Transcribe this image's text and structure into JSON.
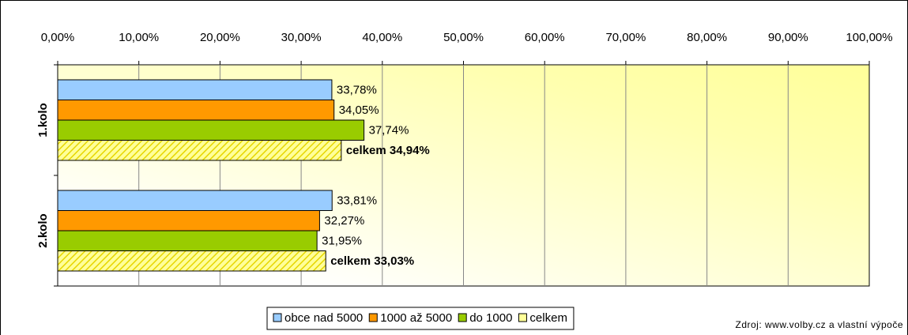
{
  "chart_data": {
    "type": "hbar",
    "categories": [
      "1.kolo",
      "2.kolo"
    ],
    "series": [
      {
        "name": "obce nad 5000",
        "color": "#99ccff",
        "values": [
          33.78,
          33.81
        ],
        "value_labels": [
          "33,78%",
          "33,81%"
        ]
      },
      {
        "name": "1000 až 5000",
        "color": "#ff9900",
        "values": [
          34.05,
          32.27
        ],
        "value_labels": [
          "34,05%",
          "32,27%"
        ]
      },
      {
        "name": "do 1000",
        "color": "#99cc00",
        "values": [
          37.74,
          31.95
        ],
        "value_labels": [
          "37,74%",
          "31,95%"
        ]
      },
      {
        "name": "celkem",
        "color": "#ffff99",
        "pattern": "hatch",
        "label_bold": true,
        "values": [
          34.94,
          33.03
        ],
        "value_labels": [
          "celkem 34,94%",
          "celkem 33,03%"
        ]
      }
    ],
    "xlim": [
      0,
      100
    ],
    "xticks": [
      {
        "value": 0,
        "label": "0,00%"
      },
      {
        "value": 10,
        "label": "10,00%"
      },
      {
        "value": 20,
        "label": "20,00%"
      },
      {
        "value": 30,
        "label": "30,00%"
      },
      {
        "value": 40,
        "label": "40,00%"
      },
      {
        "value": 50,
        "label": "50,00%"
      },
      {
        "value": 60,
        "label": "60,00%"
      },
      {
        "value": 70,
        "label": "70,00%"
      },
      {
        "value": 80,
        "label": "80,00%"
      },
      {
        "value": 90,
        "label": "90,00%"
      },
      {
        "value": 100,
        "label": "100,00%"
      }
    ],
    "grid": true,
    "legend": "bottom",
    "source": "Zdroj: www.volby.cz a vlastní výpoče"
  }
}
